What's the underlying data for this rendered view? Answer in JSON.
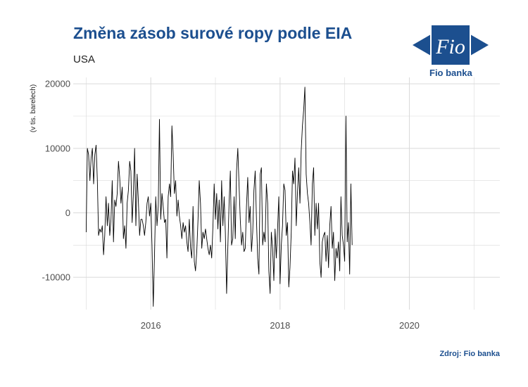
{
  "header": {
    "title": "Změna zásob surové ropy podle EIA",
    "subtitle": "USA"
  },
  "logo": {
    "mark_text": "Fio",
    "caption": "Fio banka"
  },
  "footer": {
    "source": "Zdroj: Fio banka"
  },
  "colors": {
    "brand": "#1c4f8f",
    "line": "#000000",
    "grid": "#d9d9d9"
  },
  "chart_data": {
    "type": "line",
    "title": "Změna zásob surové ropy podle EIA",
    "subtitle": "USA",
    "ylabel": "(v tis. barelech)",
    "xlabel": "",
    "xlim": [
      2014.8,
      2021.4
    ],
    "ylim": [
      -15000,
      21000
    ],
    "x_ticks": [
      2016,
      2018,
      2020
    ],
    "y_ticks": [
      -10000,
      0,
      10000,
      20000
    ],
    "grid": true,
    "legend": "none",
    "series": [
      {
        "start_year": 2015.0,
        "step_years": 0.01923,
        "values": [
          -3000,
          10000,
          9000,
          5000,
          8500,
          10000,
          4500,
          9000,
          10500,
          5000,
          -3500,
          -2500,
          -3000,
          -2000,
          -6500,
          -3500,
          2500,
          -2000,
          1500,
          -3500,
          -1000,
          5000,
          -4500,
          2000,
          1000,
          3000,
          8000,
          5500,
          1500,
          4000,
          -4000,
          -2000,
          -5500,
          1500,
          3500,
          8000,
          6500,
          -1500,
          3000,
          10000,
          -2000,
          6000,
          2000,
          -3500,
          -1000,
          -1000,
          -2000,
          -3500,
          -1500,
          1500,
          2500,
          -500,
          1500,
          -5000,
          -14500,
          -6500,
          2500,
          -2000,
          1000,
          14500,
          -1000,
          3000,
          1000,
          -1500,
          -1000,
          -7000,
          2500,
          4500,
          2500,
          13500,
          9000,
          3000,
          5000,
          -500,
          2000,
          -500,
          -2000,
          -4000,
          -1500,
          -3000,
          -2000,
          -4500,
          -6000,
          -1000,
          -5500,
          -7000,
          1000,
          -7500,
          -9000,
          -6000,
          -1000,
          5000,
          1500,
          -5500,
          -3000,
          -4000,
          -2500,
          -4000,
          -5500,
          -6500,
          -5000,
          -7000,
          -2000,
          4500,
          -1000,
          3000,
          -2500,
          2000,
          -4500,
          5000,
          -2000,
          2500,
          -3000,
          -12500,
          -5500,
          1500,
          6500,
          -5000,
          -4000,
          2500,
          -4000,
          6500,
          10000,
          4500,
          -1000,
          -5000,
          -3000,
          -6000,
          -5500,
          1000,
          5500,
          -1500,
          1000,
          -6000,
          -3000,
          3500,
          6500,
          -1000,
          -7000,
          -9500,
          6000,
          7000,
          -5000,
          -3000,
          -4500,
          4500,
          1500,
          -9000,
          -12500,
          -3000,
          -5500,
          -10500,
          -2500,
          -7000,
          -2500,
          2500,
          -11000,
          -5000,
          -2000,
          4500,
          3500,
          -3500,
          -1500,
          -11500,
          -8500,
          -3000,
          6500,
          4500,
          8500,
          -2000,
          3000,
          7000,
          1500,
          9500,
          13500,
          16000,
          19500,
          6000,
          3000,
          1500,
          -1500,
          -5000,
          4500,
          7000,
          -3500,
          1500,
          -2500,
          1500,
          -7500,
          -10000,
          -4500,
          -3500,
          -3000,
          -7500,
          -3500,
          -8500,
          -2000,
          1000,
          -5500,
          -3000,
          -10500,
          -5500,
          -7000,
          -4500,
          -9000,
          2500,
          -3500,
          -5000,
          -7500,
          15000,
          -4500,
          -1500,
          -9500,
          4500,
          -5000
        ]
      }
    ]
  }
}
